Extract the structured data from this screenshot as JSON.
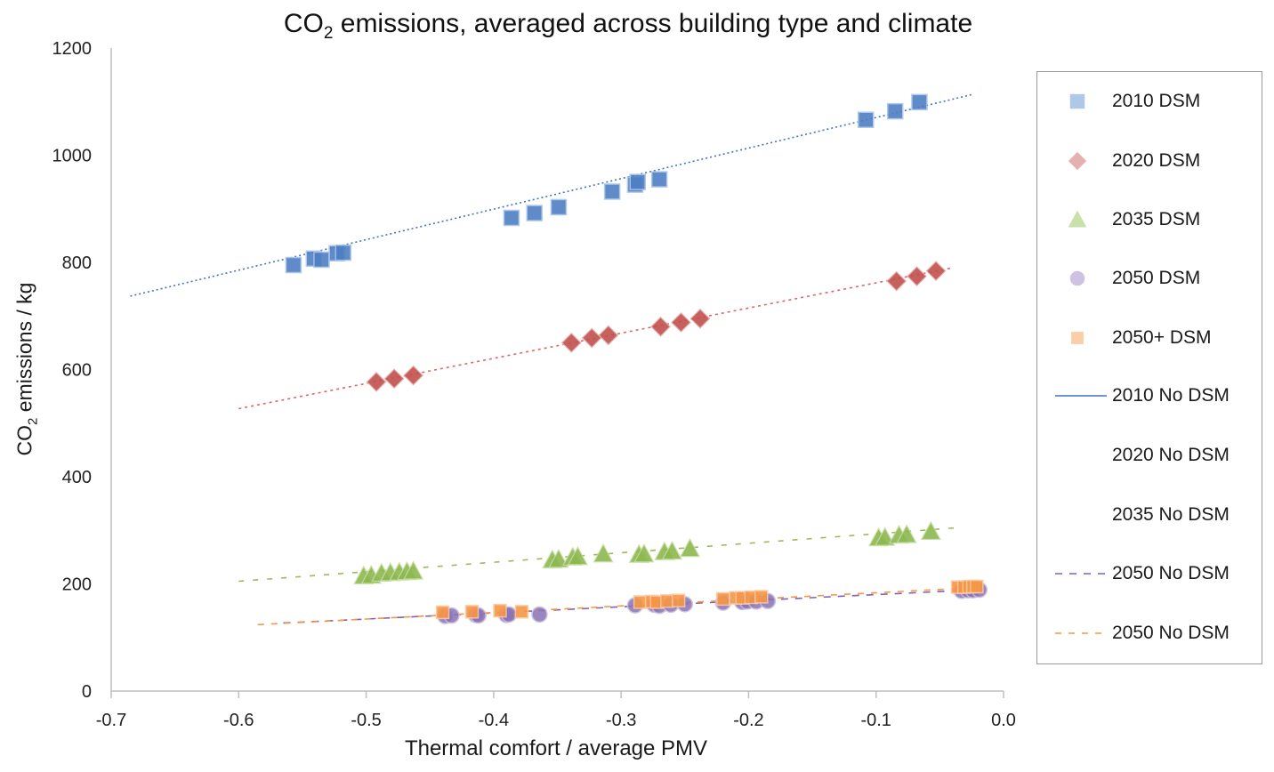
{
  "chart_data": {
    "type": "scatter",
    "title_main": "CO",
    "title_sub": "2",
    "title_rest": " emissions, averaged across building type and climate",
    "xlabel": "Thermal comfort / average PMV",
    "ylabel_main": "CO",
    "ylabel_sub": "2",
    "ylabel_rest": " emissions / kg",
    "xlim": [
      -0.7,
      0.0
    ],
    "ylim": [
      0,
      1200
    ],
    "xticks": [
      "-0.7",
      "-0.6",
      "-0.5",
      "-0.4",
      "-0.3",
      "-0.2",
      "-0.1",
      "0.0"
    ],
    "xtick_values": [
      -0.7,
      -0.6,
      -0.5,
      -0.4,
      -0.3,
      -0.2,
      -0.1,
      0.0
    ],
    "yticks": [
      "0",
      "200",
      "400",
      "600",
      "800",
      "1000",
      "1200"
    ],
    "ytick_values": [
      0,
      200,
      400,
      600,
      800,
      1000,
      1200
    ],
    "grid": false,
    "legend_position": "right",
    "series": [
      {
        "name": "2010 DSM",
        "kind": "points",
        "marker": "square",
        "color": "#4f7fc4",
        "light": "#a8c3e6",
        "x": [
          -0.557,
          -0.541,
          -0.535,
          -0.523,
          -0.518,
          -0.386,
          -0.368,
          -0.349,
          -0.307,
          -0.289,
          -0.287,
          -0.27,
          -0.108,
          -0.085,
          -0.066
        ],
        "y": [
          795,
          807,
          805,
          817,
          818,
          883,
          892,
          903,
          932,
          945,
          950,
          955,
          1066,
          1082,
          1099
        ]
      },
      {
        "name": "2020 DSM",
        "kind": "points",
        "marker": "diamond",
        "color": "#c0504d",
        "light": "#e3a9a7",
        "x": [
          -0.492,
          -0.478,
          -0.463,
          -0.339,
          -0.323,
          -0.31,
          -0.269,
          -0.253,
          -0.238,
          -0.084,
          -0.068,
          -0.053
        ],
        "y": [
          577,
          583,
          589,
          650,
          659,
          664,
          680,
          688,
          695,
          765,
          774,
          784
        ]
      },
      {
        "name": "2035 DSM",
        "kind": "points",
        "marker": "triangle",
        "color": "#8db84f",
        "light": "#c5dda3",
        "x": [
          -0.502,
          -0.496,
          -0.488,
          -0.481,
          -0.474,
          -0.468,
          -0.463,
          -0.354,
          -0.349,
          -0.338,
          -0.334,
          -0.314,
          -0.286,
          -0.282,
          -0.266,
          -0.26,
          -0.246,
          -0.098,
          -0.093,
          -0.082,
          -0.076,
          -0.057
        ],
        "y": [
          215,
          216,
          220,
          221,
          222,
          223,
          224,
          245,
          246,
          250,
          251,
          256,
          255,
          256,
          260,
          261,
          266,
          286,
          287,
          291,
          292,
          298
        ]
      },
      {
        "name": "2050 DSM",
        "kind": "points",
        "marker": "circle",
        "color": "#8a73b5",
        "light": "#c6b8de",
        "x": [
          -0.438,
          -0.433,
          -0.414,
          -0.412,
          -0.39,
          -0.388,
          -0.364,
          -0.289,
          -0.274,
          -0.27,
          -0.261,
          -0.25,
          -0.22,
          -0.205,
          -0.201,
          -0.194,
          -0.185,
          -0.033,
          -0.028,
          -0.024,
          -0.019
        ],
        "y": [
          140,
          141,
          142,
          141,
          142,
          143,
          143,
          160,
          161,
          159,
          161,
          162,
          165,
          166,
          167,
          167,
          168,
          187,
          188,
          188,
          189
        ]
      },
      {
        "name": "2050+ DSM",
        "kind": "points",
        "marker": "square-small",
        "color": "#f79646",
        "light": "#fbc99f",
        "x": [
          -0.44,
          -0.417,
          -0.395,
          -0.378,
          -0.285,
          -0.276,
          -0.272,
          -0.264,
          -0.255,
          -0.22,
          -0.21,
          -0.205,
          -0.198,
          -0.19,
          -0.036,
          -0.031,
          -0.027,
          -0.024,
          -0.021
        ],
        "y": [
          147,
          148,
          150,
          148,
          166,
          167,
          166,
          168,
          169,
          172,
          174,
          174,
          175,
          176,
          194,
          194,
          195,
          195,
          195
        ]
      },
      {
        "name": "2010 No DSM",
        "kind": "line",
        "dash": "2,3",
        "color": "#4472c4",
        "legend_dash": "none",
        "x": [
          -0.685,
          -0.025
        ],
        "y": [
          737,
          1113
        ]
      },
      {
        "name": "",
        "kind": "line",
        "dash": "3,4",
        "color": "#e06666",
        "x": [
          -0.6,
          -0.04
        ],
        "y": [
          527,
          790
        ]
      },
      {
        "name": "2020 No DSM",
        "kind": "legend-only"
      },
      {
        "name": "",
        "kind": "line",
        "dash": "6,10",
        "color": "#9bbb59",
        "x": [
          -0.6,
          -0.035
        ],
        "y": [
          205,
          305
        ]
      },
      {
        "name": "2035 No DSM",
        "kind": "legend-only"
      },
      {
        "name": "2050 No DSM",
        "kind": "line",
        "dash": "8,8",
        "color": "#7f62b0",
        "x": [
          -0.565,
          -0.03
        ],
        "y": [
          127,
          188
        ]
      },
      {
        "name": "2050 No DSM",
        "kind": "line",
        "dash": "7,8",
        "color": "#f79646",
        "x": [
          -0.585,
          -0.03
        ],
        "y": [
          124,
          192
        ]
      }
    ]
  }
}
